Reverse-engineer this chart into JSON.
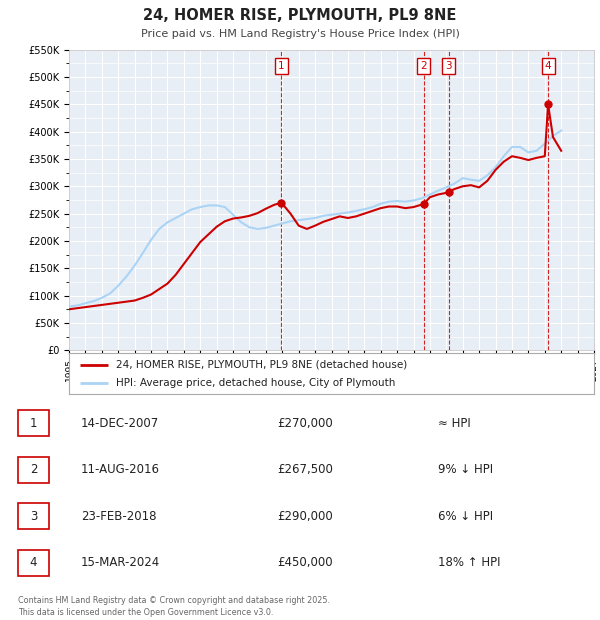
{
  "title": "24, HOMER RISE, PLYMOUTH, PL9 8NE",
  "subtitle": "Price paid vs. HM Land Registry's House Price Index (HPI)",
  "background_color": "#ffffff",
  "plot_bg_color": "#e8eef5",
  "grid_color": "#ffffff",
  "xlim": [
    1995,
    2027
  ],
  "ylim": [
    0,
    550000
  ],
  "yticks": [
    0,
    50000,
    100000,
    150000,
    200000,
    250000,
    300000,
    350000,
    400000,
    450000,
    500000,
    550000
  ],
  "ytick_labels": [
    "£0",
    "£50K",
    "£100K",
    "£150K",
    "£200K",
    "£250K",
    "£300K",
    "£350K",
    "£400K",
    "£450K",
    "£500K",
    "£550K"
  ],
  "xticks": [
    1995,
    1996,
    1997,
    1998,
    1999,
    2000,
    2001,
    2002,
    2003,
    2004,
    2005,
    2006,
    2007,
    2008,
    2009,
    2010,
    2011,
    2012,
    2013,
    2014,
    2015,
    2016,
    2017,
    2018,
    2019,
    2020,
    2021,
    2022,
    2023,
    2024,
    2025,
    2026,
    2027
  ],
  "hpi_color": "#aad4f5",
  "price_color": "#cc0000",
  "sale_marker_color": "#cc0000",
  "sale_number_color": "#cc0000",
  "dashed_line_color": "#cc0000",
  "legend_label_price": "24, HOMER RISE, PLYMOUTH, PL9 8NE (detached house)",
  "legend_label_hpi": "HPI: Average price, detached house, City of Plymouth",
  "sales": [
    {
      "num": 1,
      "year": 2007.95,
      "price": 270000,
      "label": "14-DEC-2007",
      "amount": "£270,000",
      "vs": "≈ HPI"
    },
    {
      "num": 2,
      "year": 2016.61,
      "price": 267500,
      "label": "11-AUG-2016",
      "amount": "£267,500",
      "vs": "9% ↓ HPI"
    },
    {
      "num": 3,
      "year": 2018.14,
      "price": 290000,
      "label": "23-FEB-2018",
      "amount": "£290,000",
      "vs": "6% ↓ HPI"
    },
    {
      "num": 4,
      "year": 2024.2,
      "price": 450000,
      "label": "15-MAR-2024",
      "amount": "£450,000",
      "vs": "18% ↑ HPI"
    }
  ],
  "footer": "Contains HM Land Registry data © Crown copyright and database right 2025.\nThis data is licensed under the Open Government Licence v3.0.",
  "hpi_x": [
    1995.0,
    1995.5,
    1996.0,
    1996.5,
    1997.0,
    1997.5,
    1998.0,
    1998.5,
    1999.0,
    1999.5,
    2000.0,
    2000.5,
    2001.0,
    2001.5,
    2002.0,
    2002.5,
    2003.0,
    2003.5,
    2004.0,
    2004.5,
    2005.0,
    2005.5,
    2006.0,
    2006.5,
    2007.0,
    2007.5,
    2008.0,
    2008.5,
    2009.0,
    2009.5,
    2010.0,
    2010.5,
    2011.0,
    2011.5,
    2012.0,
    2012.5,
    2013.0,
    2013.5,
    2014.0,
    2014.5,
    2015.0,
    2015.5,
    2016.0,
    2016.5,
    2017.0,
    2017.5,
    2018.0,
    2018.5,
    2019.0,
    2019.5,
    2020.0,
    2020.5,
    2021.0,
    2021.5,
    2022.0,
    2022.5,
    2023.0,
    2023.5,
    2024.0,
    2024.5,
    2025.0
  ],
  "hpi_y": [
    80000,
    82000,
    86000,
    90000,
    96000,
    104000,
    118000,
    135000,
    155000,
    178000,
    202000,
    222000,
    234000,
    242000,
    250000,
    258000,
    262000,
    265000,
    265000,
    262000,
    248000,
    234000,
    225000,
    222000,
    224000,
    228000,
    232000,
    236000,
    238000,
    240000,
    242000,
    246000,
    248000,
    250000,
    252000,
    255000,
    258000,
    262000,
    268000,
    272000,
    273000,
    272000,
    274000,
    278000,
    285000,
    292000,
    298000,
    305000,
    315000,
    312000,
    310000,
    320000,
    335000,
    355000,
    372000,
    372000,
    362000,
    365000,
    378000,
    392000,
    402000
  ],
  "price_x": [
    1995.0,
    1995.5,
    1996.0,
    1996.5,
    1997.0,
    1997.5,
    1998.0,
    1998.5,
    1999.0,
    1999.5,
    2000.0,
    2000.5,
    2001.0,
    2001.5,
    2002.0,
    2002.5,
    2003.0,
    2003.5,
    2004.0,
    2004.5,
    2005.0,
    2005.5,
    2006.0,
    2006.5,
    2007.0,
    2007.5,
    2007.95,
    2008.5,
    2009.0,
    2009.5,
    2010.0,
    2010.5,
    2011.0,
    2011.5,
    2012.0,
    2012.5,
    2013.0,
    2013.5,
    2014.0,
    2014.5,
    2015.0,
    2015.5,
    2016.0,
    2016.61,
    2017.0,
    2017.5,
    2018.0,
    2018.14,
    2018.5,
    2019.0,
    2019.5,
    2020.0,
    2020.5,
    2021.0,
    2021.5,
    2022.0,
    2022.5,
    2023.0,
    2023.5,
    2024.0,
    2024.2,
    2024.5,
    2025.0
  ],
  "price_y": [
    75000,
    77000,
    79000,
    81000,
    83000,
    85000,
    87000,
    89000,
    91000,
    96000,
    102000,
    112000,
    122000,
    138000,
    158000,
    178000,
    198000,
    212000,
    226000,
    236000,
    241000,
    243000,
    246000,
    251000,
    259000,
    266000,
    270000,
    250000,
    228000,
    222000,
    228000,
    235000,
    240000,
    245000,
    242000,
    245000,
    250000,
    255000,
    260000,
    263000,
    263000,
    260000,
    262000,
    267500,
    280000,
    285000,
    288000,
    290000,
    295000,
    300000,
    302000,
    298000,
    310000,
    330000,
    345000,
    355000,
    352000,
    348000,
    352000,
    355000,
    450000,
    390000,
    365000
  ]
}
